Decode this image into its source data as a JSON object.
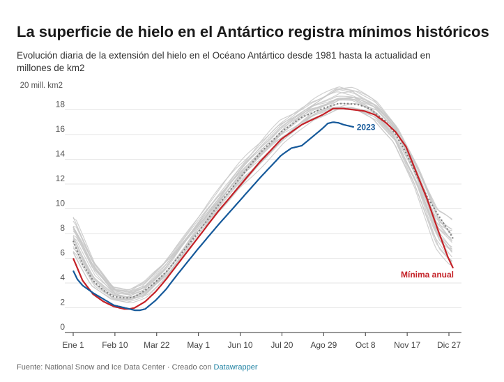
{
  "header": {
    "title": "La superficie de hielo en el Antártico registra mínimos históricos",
    "subtitle": "Evolución diaria de la extensión del hielo en el Océano Antártico desde 1981 hasta la actualidad en millones de km2"
  },
  "footer": {
    "source": "Fuente: National Snow and Ice Data Center · Creado con ",
    "link": "Datawrapper"
  },
  "colors": {
    "historical": "#c8c8c8",
    "average": "#7a7a7a",
    "minimum": "#c42127",
    "current": "#15599a",
    "axis": "#333333",
    "grid": "#e6e6e6"
  },
  "chart_data": {
    "type": "line",
    "xlabel": "",
    "ylabel": "",
    "y_unit_label": "20 mill. km2",
    "ylim": [
      0,
      20
    ],
    "y_ticks": [
      0,
      2,
      4,
      6,
      8,
      10,
      12,
      14,
      16,
      18
    ],
    "x_domain": [
      1,
      365
    ],
    "x_ticks": [
      {
        "label": "Ene 1",
        "day": 1
      },
      {
        "label": "Feb 10",
        "day": 41
      },
      {
        "label": "Mar 22",
        "day": 81
      },
      {
        "label": "May 1",
        "day": 121
      },
      {
        "label": "Jun 10",
        "day": 161
      },
      {
        "label": "Jul 20",
        "day": 201
      },
      {
        "label": "Ago 29",
        "day": 241
      },
      {
        "label": "Oct 8",
        "day": 281
      },
      {
        "label": "Nov 17",
        "day": 321
      },
      {
        "label": "Dic 27",
        "day": 361
      }
    ],
    "historical_envelope": {
      "day": [
        1,
        20,
        40,
        55,
        70,
        90,
        120,
        160,
        200,
        230,
        255,
        270,
        290,
        310,
        330,
        350,
        365
      ],
      "low": [
        6.2,
        3.6,
        2.5,
        2.3,
        2.7,
        4.2,
        7.6,
        11.6,
        15.0,
        16.9,
        17.6,
        17.6,
        17.0,
        15.2,
        11.5,
        6.6,
        4.8
      ],
      "high": [
        9.6,
        6.1,
        3.8,
        3.6,
        4.3,
        6.0,
        9.2,
        13.6,
        17.3,
        19.0,
        20.1,
        19.9,
        18.9,
        17.0,
        13.9,
        10.3,
        9.6
      ]
    },
    "series": [
      {
        "name": "",
        "style": "dotted",
        "x": [
          1,
          10,
          20,
          30,
          40,
          50,
          55,
          60,
          70,
          80,
          90,
          100,
          120,
          140,
          160,
          180,
          200,
          220,
          240,
          255,
          265,
          275,
          285,
          300,
          310,
          320,
          330,
          340,
          350,
          360,
          365
        ],
        "y": [
          7.4,
          5.5,
          4.2,
          3.4,
          2.9,
          2.8,
          2.8,
          2.9,
          3.4,
          4.1,
          4.9,
          5.9,
          8.0,
          10.3,
          12.4,
          14.5,
          16.2,
          17.4,
          18.1,
          18.5,
          18.5,
          18.4,
          18.1,
          17.1,
          16.0,
          14.5,
          12.7,
          11.0,
          9.6,
          8.3,
          7.6
        ]
      },
      {
        "name": "Mínima anual",
        "x": [
          1,
          10,
          20,
          30,
          40,
          50,
          55,
          60,
          70,
          80,
          90,
          100,
          120,
          140,
          160,
          180,
          200,
          220,
          240,
          250,
          260,
          270,
          280,
          290,
          300,
          310,
          320,
          330,
          340,
          350,
          360,
          365
        ],
        "y": [
          6.0,
          4.2,
          3.1,
          2.5,
          2.1,
          1.9,
          1.9,
          2.0,
          2.5,
          3.3,
          4.3,
          5.4,
          7.6,
          9.8,
          11.8,
          13.8,
          15.6,
          16.8,
          17.6,
          18.1,
          18.1,
          18.0,
          17.9,
          17.6,
          17.0,
          16.2,
          15.0,
          12.9,
          10.8,
          8.4,
          6.1,
          5.2
        ]
      },
      {
        "name": "2023",
        "x": [
          1,
          5,
          10,
          20,
          30,
          40,
          50,
          55,
          60,
          65,
          70,
          80,
          90,
          100,
          120,
          140,
          160,
          180,
          200,
          210,
          220,
          230,
          240,
          245,
          250,
          255,
          260,
          265,
          270
        ],
        "y": [
          5.0,
          4.3,
          3.8,
          3.2,
          2.7,
          2.2,
          2.0,
          1.9,
          1.8,
          1.8,
          1.9,
          2.6,
          3.5,
          4.6,
          6.7,
          8.7,
          10.6,
          12.5,
          14.3,
          14.9,
          15.1,
          15.8,
          16.5,
          16.9,
          17.0,
          16.95,
          16.8,
          16.7,
          16.6
        ]
      }
    ],
    "annotations": [
      {
        "text": "2023",
        "series": "2023"
      },
      {
        "text": "Mínima anual",
        "series": "Mínima anual"
      }
    ]
  }
}
